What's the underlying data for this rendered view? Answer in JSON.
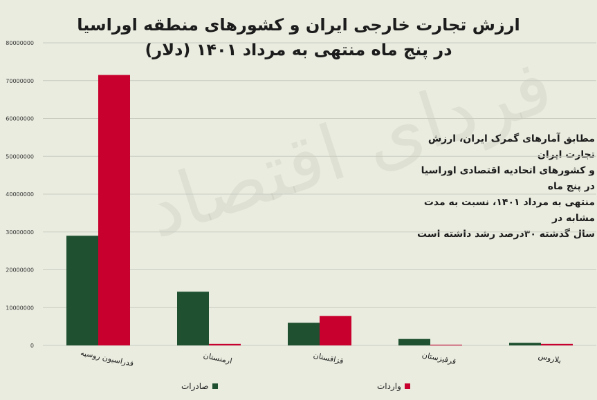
{
  "chart_data": {
    "type": "bar",
    "title": "ارزش تجارت خارجی ایران و کشورهای منطقه اوراسیا",
    "subtitle": "در پنج ماه منتهی به مرداد ۱۴۰۱ (دلار)",
    "categories": [
      "فدراسیون روسیه",
      "ارمنستان",
      "قزاقستان",
      "قرقیزستان",
      "بلاروس"
    ],
    "series": [
      {
        "name": "صادرات",
        "color": "#1f5130",
        "values": [
          29000000,
          14200000,
          6000000,
          1700000,
          700000
        ]
      },
      {
        "name": "واردات",
        "color": "#c8002d",
        "values": [
          71500000,
          400000,
          7800000,
          200000,
          400000
        ]
      }
    ],
    "ylim": [
      0,
      80000000
    ],
    "yticks": [
      "0",
      "10000000",
      "20000000",
      "30000000",
      "40000000",
      "50000000",
      "60000000",
      "70000000",
      "80000000"
    ],
    "grid": true,
    "legend": "bottom"
  },
  "note": {
    "lines": [
      "مطابق آمارهای گمرک ایران، ارزش تجارت ایران",
      "و کشورهای اتحادیه اقتصادی اوراسیا در پنج ماه",
      "منتهی به مرداد ۱۴۰۱، نسبت به مدت مشابه در",
      "سال گذشته ۳۰درصد رشد داشته است"
    ]
  },
  "watermark": "فردای اقتصاد"
}
